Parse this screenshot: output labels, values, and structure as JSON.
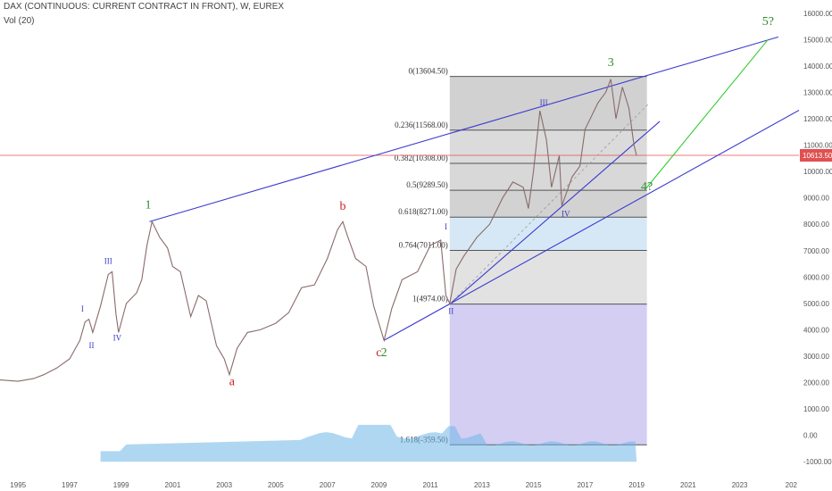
{
  "header": {
    "title": "DAX (CONTINUOUS: CURRENT CONTRACT IN FRONT), W, EUREX",
    "volume_label": "Vol (20)"
  },
  "colors": {
    "price_up": "#7a9a7a",
    "price_down": "#c07070",
    "trendline": "#3b3bd0",
    "projection": "#33cc33",
    "major_wave": "#2e8b2e",
    "corrective_wave": "#cc2222",
    "minor_wave": "#3a3acc",
    "current_price_line": "#e05050",
    "current_price_badge": "#e05050",
    "volume": "#6fb7e8"
  },
  "chart_data": {
    "type": "line",
    "title": "DAX (CONTINUOUS: CURRENT CONTRACT IN FRONT), W, EUREX",
    "x_tick_labels": [
      "1995",
      "1997",
      "1999",
      "2001",
      "2003",
      "2005",
      "2007",
      "2009",
      "2011",
      "2013",
      "2015",
      "2017",
      "2019",
      "2021",
      "2023",
      "202"
    ],
    "y_tick_labels": [
      "16000.00",
      "15000.00",
      "14000.00",
      "13000.00",
      "12000.00",
      "11000.00",
      "10000.00",
      "9000.00",
      "8000.00",
      "7000.00",
      "6000.00",
      "5000.00",
      "4000.00",
      "3000.00",
      "2000.00",
      "1000.00",
      "0.00",
      "-1000.00"
    ],
    "xlim": [
      1994.3,
      2025.3
    ],
    "ylim": [
      -1500,
      16500
    ],
    "current_price": "10613.50",
    "series": [
      {
        "values": [
          [
            1994.3,
            2100
          ],
          [
            1995.0,
            2050
          ],
          [
            1995.6,
            2150
          ],
          [
            1996.0,
            2300
          ],
          [
            1996.5,
            2550
          ],
          [
            1997.0,
            2900
          ],
          [
            1997.4,
            3600
          ],
          [
            1997.6,
            4300
          ],
          [
            1997.75,
            4400
          ],
          [
            1997.9,
            3900
          ],
          [
            1998.2,
            4900
          ],
          [
            1998.5,
            6100
          ],
          [
            1998.65,
            6200
          ],
          [
            1998.8,
            4600
          ],
          [
            1998.9,
            3900
          ],
          [
            1999.2,
            5000
          ],
          [
            1999.6,
            5400
          ],
          [
            1999.8,
            5900
          ],
          [
            2000.0,
            7200
          ],
          [
            2000.2,
            8100
          ],
          [
            2000.5,
            7500
          ],
          [
            2000.8,
            7100
          ],
          [
            2001.0,
            6400
          ],
          [
            2001.3,
            6200
          ],
          [
            2001.7,
            4500
          ],
          [
            2002.0,
            5300
          ],
          [
            2002.3,
            5100
          ],
          [
            2002.7,
            3400
          ],
          [
            2003.0,
            2900
          ],
          [
            2003.2,
            2300
          ],
          [
            2003.5,
            3300
          ],
          [
            2003.9,
            3900
          ],
          [
            2004.4,
            4000
          ],
          [
            2005.0,
            4250
          ],
          [
            2005.5,
            4650
          ],
          [
            2006.0,
            5600
          ],
          [
            2006.5,
            5700
          ],
          [
            2007.0,
            6700
          ],
          [
            2007.4,
            7800
          ],
          [
            2007.6,
            8100
          ],
          [
            2007.8,
            7500
          ],
          [
            2008.1,
            6700
          ],
          [
            2008.5,
            6400
          ],
          [
            2008.8,
            4900
          ],
          [
            2009.2,
            3600
          ],
          [
            2009.5,
            4800
          ],
          [
            2009.9,
            5900
          ],
          [
            2010.5,
            6200
          ],
          [
            2011.0,
            7200
          ],
          [
            2011.4,
            7400
          ],
          [
            2011.6,
            5300
          ],
          [
            2011.75,
            5000
          ],
          [
            2012.0,
            6300
          ],
          [
            2012.3,
            6800
          ],
          [
            2012.8,
            7500
          ],
          [
            2013.3,
            8000
          ],
          [
            2013.8,
            9000
          ],
          [
            2014.2,
            9600
          ],
          [
            2014.6,
            9400
          ],
          [
            2014.8,
            8600
          ],
          [
            2015.0,
            10000
          ],
          [
            2015.25,
            12300
          ],
          [
            2015.5,
            11200
          ],
          [
            2015.7,
            9400
          ],
          [
            2016.0,
            10600
          ],
          [
            2016.1,
            8700
          ],
          [
            2016.5,
            9800
          ],
          [
            2016.8,
            10200
          ],
          [
            2017.0,
            11600
          ],
          [
            2017.5,
            12600
          ],
          [
            2017.8,
            13000
          ],
          [
            2018.0,
            13500
          ],
          [
            2018.2,
            12000
          ],
          [
            2018.45,
            13200
          ],
          [
            2018.7,
            12400
          ],
          [
            2018.9,
            11000
          ],
          [
            2019.0,
            10600
          ]
        ]
      }
    ],
    "fibonacci_levels": [
      {
        "label": "0(13604.50)",
        "value": 13604.5
      },
      {
        "label": "0.236(11568.00)",
        "value": 11568.0
      },
      {
        "label": "0.382(10308.00)",
        "value": 10308.0
      },
      {
        "label": "0.5(9289.50)",
        "value": 9289.5
      },
      {
        "label": "0.618(8271.00)",
        "value": 8271.0
      },
      {
        "label": "0.764(7011.00)",
        "value": 7011.0
      },
      {
        "label": "1(4974.00)",
        "value": 4974.0
      },
      {
        "label": "1.618(-359.50)",
        "value": -359.5
      }
    ],
    "annotations": [
      {
        "text": "1",
        "x": 2000.05,
        "y": 8600,
        "kind": "major"
      },
      {
        "text": "2",
        "x": 2009.2,
        "y": 3000,
        "kind": "major"
      },
      {
        "text": "3",
        "x": 2018.0,
        "y": 14000,
        "kind": "major"
      },
      {
        "text": "4?",
        "x": 2019.4,
        "y": 9300,
        "kind": "major"
      },
      {
        "text": "5?",
        "x": 2024.1,
        "y": 15550,
        "kind": "major"
      },
      {
        "text": "a",
        "x": 2003.3,
        "y": 1900,
        "kind": "corrective"
      },
      {
        "text": "b",
        "x": 2007.6,
        "y": 8550,
        "kind": "corrective"
      },
      {
        "text": "c",
        "x": 2009.0,
        "y": 3000,
        "kind": "corrective"
      },
      {
        "text": "I",
        "x": 1997.5,
        "y": 4700,
        "kind": "minor"
      },
      {
        "text": "II",
        "x": 1997.85,
        "y": 3300,
        "kind": "minor"
      },
      {
        "text": "III",
        "x": 1998.5,
        "y": 6500,
        "kind": "minor"
      },
      {
        "text": "IV",
        "x": 1998.85,
        "y": 3600,
        "kind": "minor"
      },
      {
        "text": "I",
        "x": 2011.6,
        "y": 7800,
        "kind": "minor"
      },
      {
        "text": "II",
        "x": 2011.8,
        "y": 4600,
        "kind": "minor"
      },
      {
        "text": "III",
        "x": 2015.4,
        "y": 12500,
        "kind": "minor"
      },
      {
        "text": "IV",
        "x": 2016.25,
        "y": 8300,
        "kind": "minor"
      }
    ]
  }
}
